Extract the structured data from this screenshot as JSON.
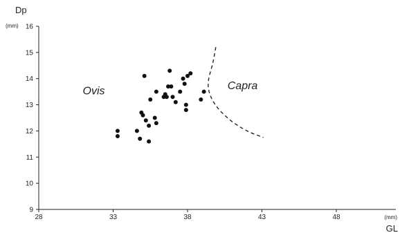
{
  "chart_data": {
    "type": "scatter",
    "xlabel": "GL",
    "ylabel": "Dp",
    "x_unit": "(mm)",
    "y_unit": "(mm)",
    "xlim": [
      28,
      52
    ],
    "ylim": [
      9,
      16
    ],
    "x_ticks": [
      28,
      33,
      38,
      43,
      48
    ],
    "y_ticks": [
      9,
      10,
      11,
      12,
      13,
      14,
      15,
      16
    ],
    "grid": false,
    "legend": "none",
    "marker_color": "#111111",
    "points": [
      {
        "x": 33.3,
        "y": 12.0
      },
      {
        "x": 33.3,
        "y": 11.8
      },
      {
        "x": 34.6,
        "y": 12.0
      },
      {
        "x": 34.8,
        "y": 11.7
      },
      {
        "x": 34.9,
        "y": 12.7
      },
      {
        "x": 35.0,
        "y": 12.6
      },
      {
        "x": 35.1,
        "y": 14.1
      },
      {
        "x": 35.2,
        "y": 12.4
      },
      {
        "x": 35.4,
        "y": 12.2
      },
      {
        "x": 35.4,
        "y": 11.6
      },
      {
        "x": 35.5,
        "y": 13.2
      },
      {
        "x": 35.8,
        "y": 12.5
      },
      {
        "x": 35.9,
        "y": 12.3
      },
      {
        "x": 35.9,
        "y": 13.5
      },
      {
        "x": 36.4,
        "y": 13.3
      },
      {
        "x": 36.5,
        "y": 13.4
      },
      {
        "x": 36.6,
        "y": 13.3
      },
      {
        "x": 36.7,
        "y": 13.7
      },
      {
        "x": 36.8,
        "y": 14.3
      },
      {
        "x": 36.9,
        "y": 13.7
      },
      {
        "x": 37.0,
        "y": 13.3
      },
      {
        "x": 37.2,
        "y": 13.1
      },
      {
        "x": 37.5,
        "y": 13.5
      },
      {
        "x": 37.7,
        "y": 14.0
      },
      {
        "x": 37.8,
        "y": 13.8
      },
      {
        "x": 37.9,
        "y": 12.8
      },
      {
        "x": 37.9,
        "y": 13.0
      },
      {
        "x": 38.0,
        "y": 14.1
      },
      {
        "x": 38.2,
        "y": 14.2
      },
      {
        "x": 38.9,
        "y": 13.2
      },
      {
        "x": 39.1,
        "y": 13.5
      }
    ],
    "boundary": [
      {
        "x": 39.9,
        "y": 15.2
      },
      {
        "x": 39.7,
        "y": 14.6
      },
      {
        "x": 39.4,
        "y": 13.9
      },
      {
        "x": 39.5,
        "y": 13.4
      },
      {
        "x": 40.0,
        "y": 12.9
      },
      {
        "x": 40.9,
        "y": 12.4
      },
      {
        "x": 42.0,
        "y": 12.0
      },
      {
        "x": 43.1,
        "y": 11.75
      }
    ],
    "annotations": [
      {
        "id": "ovis",
        "text": "Ovis",
        "x": 31.7,
        "y": 13.4
      },
      {
        "id": "capra",
        "text": "Capra",
        "x": 41.7,
        "y": 13.6
      }
    ]
  }
}
